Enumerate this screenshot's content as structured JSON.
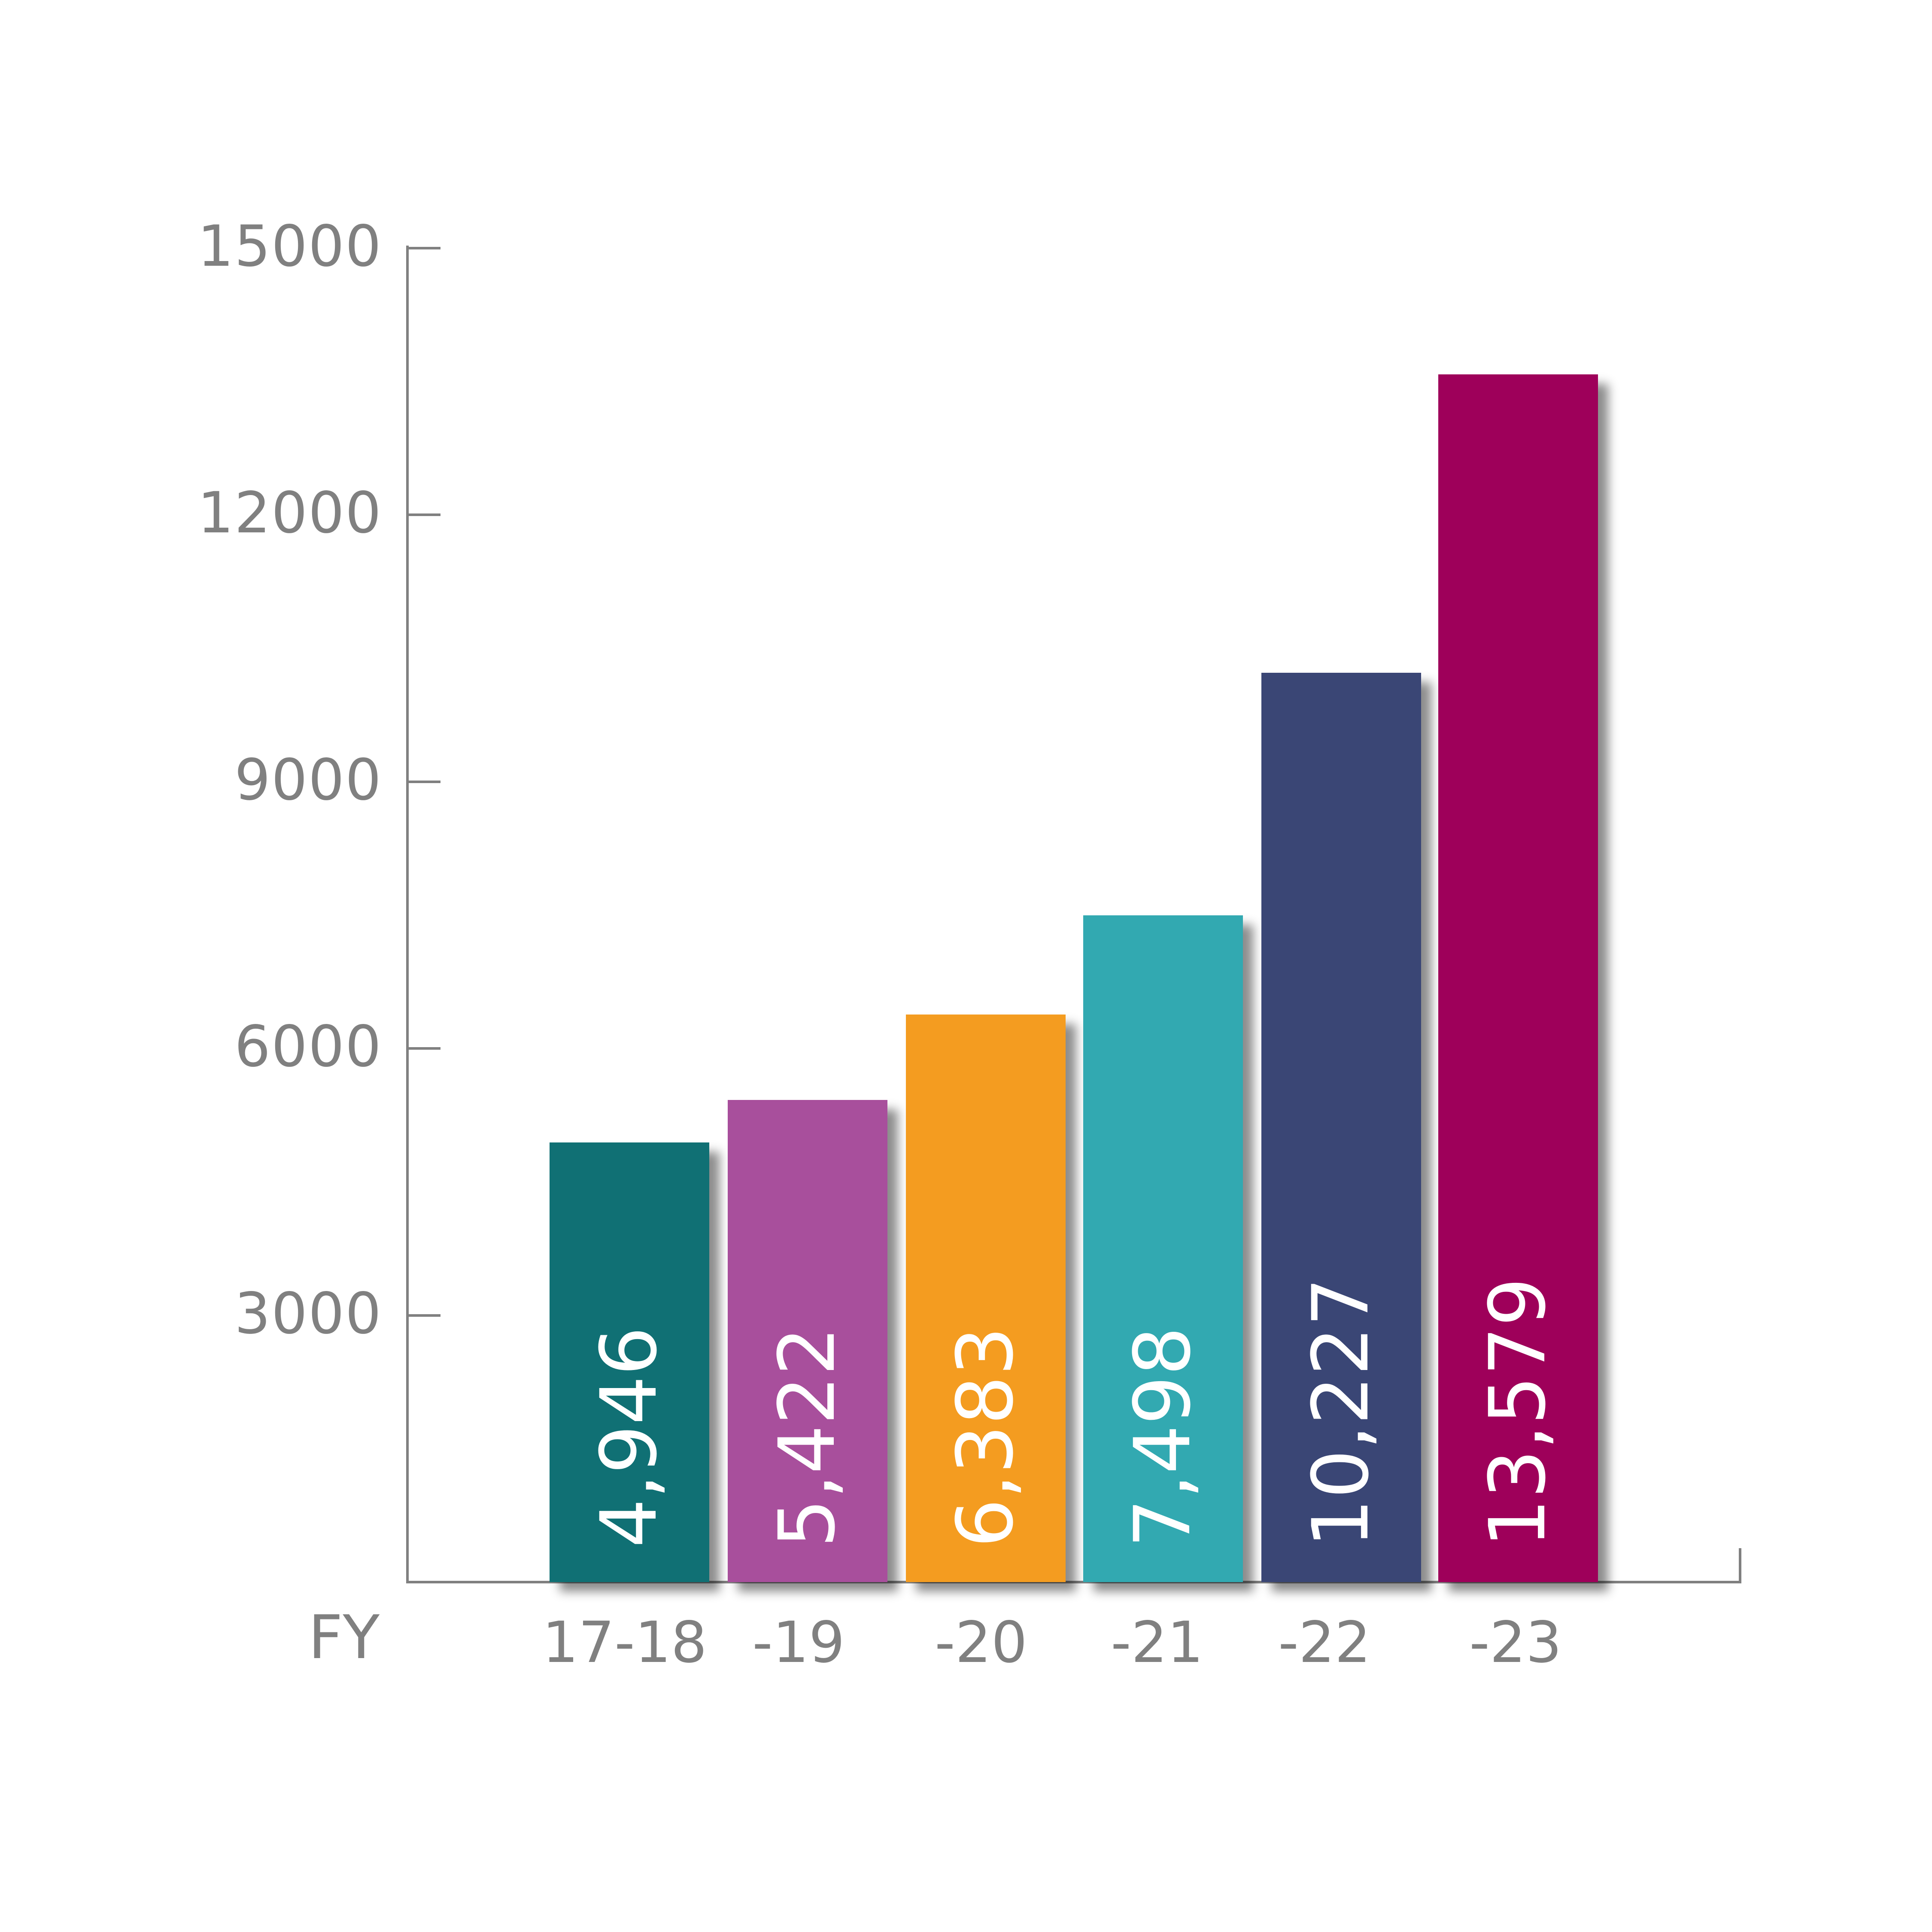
{
  "chart_data": {
    "type": "bar",
    "title": "",
    "xlabel": "FY",
    "ylabel": "",
    "categories": [
      "17-18",
      "-19",
      "-20",
      "-21",
      "-22",
      "-23"
    ],
    "values": [
      4946,
      5422,
      6383,
      7498,
      10227,
      13579
    ],
    "value_labels": [
      "4,946",
      "5,422",
      "6,383",
      "7,498",
      "10,227",
      "13,579"
    ],
    "bar_colors": [
      "#107074",
      "#A84F9C",
      "#F49C20",
      "#32A9B1",
      "#3A4675",
      "#9E005A"
    ],
    "yticks": [
      3000,
      6000,
      9000,
      12000,
      15000
    ],
    "ytick_labels": [
      "3000",
      "6000",
      "9000",
      "12000",
      "15000"
    ],
    "ylim": [
      0,
      15000
    ],
    "grid": false,
    "legend": null,
    "axis_color": "#808080"
  },
  "axis": {
    "x_title": "FY"
  }
}
